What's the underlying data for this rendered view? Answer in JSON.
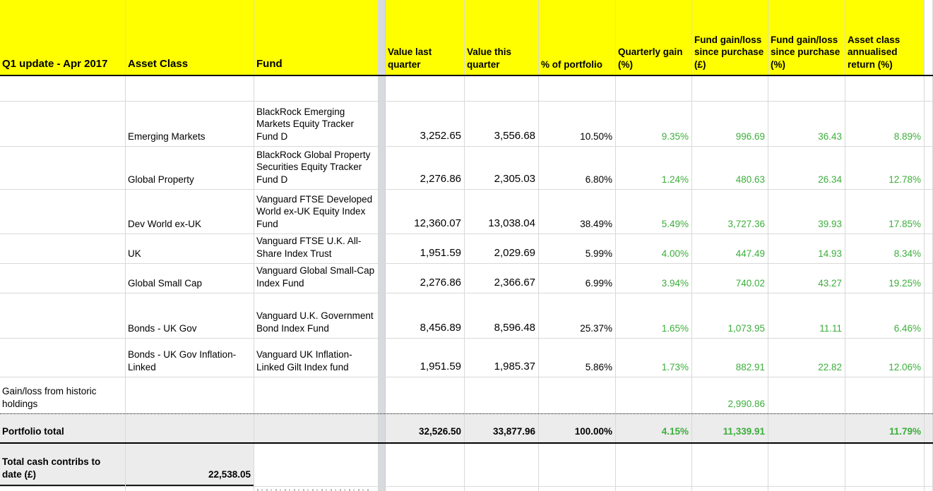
{
  "sheet": {
    "headers": {
      "title": "Q1 update - Apr 2017",
      "asset_class": "Asset Class",
      "fund": "Fund",
      "value_last": "Value last quarter",
      "value_this": "Value this quarter",
      "pct_portfolio": "% of portfolio",
      "quarterly_gain": "Quarterly gain (%)",
      "gain_gbp": "Fund gain/loss since purchase (£)",
      "gain_pct": "Fund gain/loss since purchase (%)",
      "annualised": "Asset class annualised return (%)"
    },
    "holdings": [
      {
        "asset_class": "Emerging Markets",
        "fund": "BlackRock Emerging Markets Equity Tracker Fund D",
        "value_last": "3,252.65",
        "value_this": "3,556.68",
        "pct_of_portfolio": "10.50%",
        "quarterly_gain": "9.35%",
        "gain_since_purchase_gbp": "996.69",
        "gain_since_purchase_pct": "36.43",
        "annualised_return": "8.89%"
      },
      {
        "asset_class": "Global Property",
        "fund": "BlackRock Global Property Securities Equity Tracker Fund D",
        "value_last": "2,276.86",
        "value_this": "2,305.03",
        "pct_of_portfolio": "6.80%",
        "quarterly_gain": "1.24%",
        "gain_since_purchase_gbp": "480.63",
        "gain_since_purchase_pct": "26.34",
        "annualised_return": "12.78%"
      },
      {
        "asset_class": "Dev World ex-UK",
        "fund": "Vanguard FTSE Developed World ex-UK Equity Index Fund",
        "value_last": "12,360.07",
        "value_this": "13,038.04",
        "pct_of_portfolio": "38.49%",
        "quarterly_gain": "5.49%",
        "gain_since_purchase_gbp": "3,727.36",
        "gain_since_purchase_pct": "39.93",
        "annualised_return": "17.85%"
      },
      {
        "asset_class": "UK",
        "fund": "Vanguard FTSE U.K. All-Share Index Trust",
        "value_last": "1,951.59",
        "value_this": "2,029.69",
        "pct_of_portfolio": "5.99%",
        "quarterly_gain": "4.00%",
        "gain_since_purchase_gbp": "447.49",
        "gain_since_purchase_pct": "14.93",
        "annualised_return": "8.34%"
      },
      {
        "asset_class": "Global Small Cap",
        "fund": "Vanguard Global Small-Cap Index Fund",
        "value_last": "2,276.86",
        "value_this": "2,366.67",
        "pct_of_portfolio": "6.99%",
        "quarterly_gain": "3.94%",
        "gain_since_purchase_gbp": "740.02",
        "gain_since_purchase_pct": "43.27",
        "annualised_return": "19.25%"
      },
      {
        "asset_class": "Bonds - UK Gov",
        "fund": "Vanguard U.K. Government Bond Index Fund",
        "value_last": "8,456.89",
        "value_this": "8,596.48",
        "pct_of_portfolio": "25.37%",
        "quarterly_gain": "1.65%",
        "gain_since_purchase_gbp": "1,073.95",
        "gain_since_purchase_pct": "11.11",
        "annualised_return": "6.46%"
      },
      {
        "asset_class": "Bonds - UK Gov Inflation-Linked",
        "fund": "Vanguard UK Inflation-Linked Gilt Index fund",
        "value_last": "1,951.59",
        "value_this": "1,985.37",
        "pct_of_portfolio": "5.86%",
        "quarterly_gain": "1.73%",
        "gain_since_purchase_gbp": "882.91",
        "gain_since_purchase_pct": "22.82",
        "annualised_return": "12.06%"
      }
    ],
    "historic": {
      "label": "Gain/loss from historic holdings",
      "gain_since_purchase_gbp": "2,990.86"
    },
    "total": {
      "label": "Portfolio total",
      "value_last": "32,526.50",
      "value_this": "33,877.96",
      "pct_of_portfolio": "100.00%",
      "quarterly_gain": "4.15%",
      "gain_since_purchase_gbp": "11,339.91",
      "gain_since_purchase_pct": "",
      "annualised_return": "11.79%"
    },
    "cash": {
      "label": "Total cash contribs to date (£)",
      "value": "22,538.05"
    },
    "colors": {
      "header_bg": "#ffff00",
      "positive_green": "#3cae3c",
      "total_row_bg": "#ececec",
      "frozen_divider": "#d7dade"
    }
  }
}
